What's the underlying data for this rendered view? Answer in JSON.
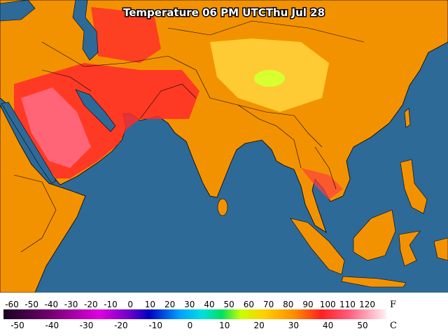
{
  "title": "Temperature 06 PM UTCThu Jul 28",
  "legend": {
    "fahrenheit": {
      "labels": [
        -60,
        -50,
        -40,
        -30,
        -20,
        -10,
        0,
        10,
        20,
        30,
        40,
        50,
        60,
        70,
        80,
        90,
        100,
        110,
        120
      ],
      "unit": "F"
    },
    "celsius": {
      "labels": [
        -50,
        -40,
        -30,
        -20,
        -10,
        0,
        10,
        20,
        30,
        40,
        50
      ],
      "unit": "C"
    }
  }
}
